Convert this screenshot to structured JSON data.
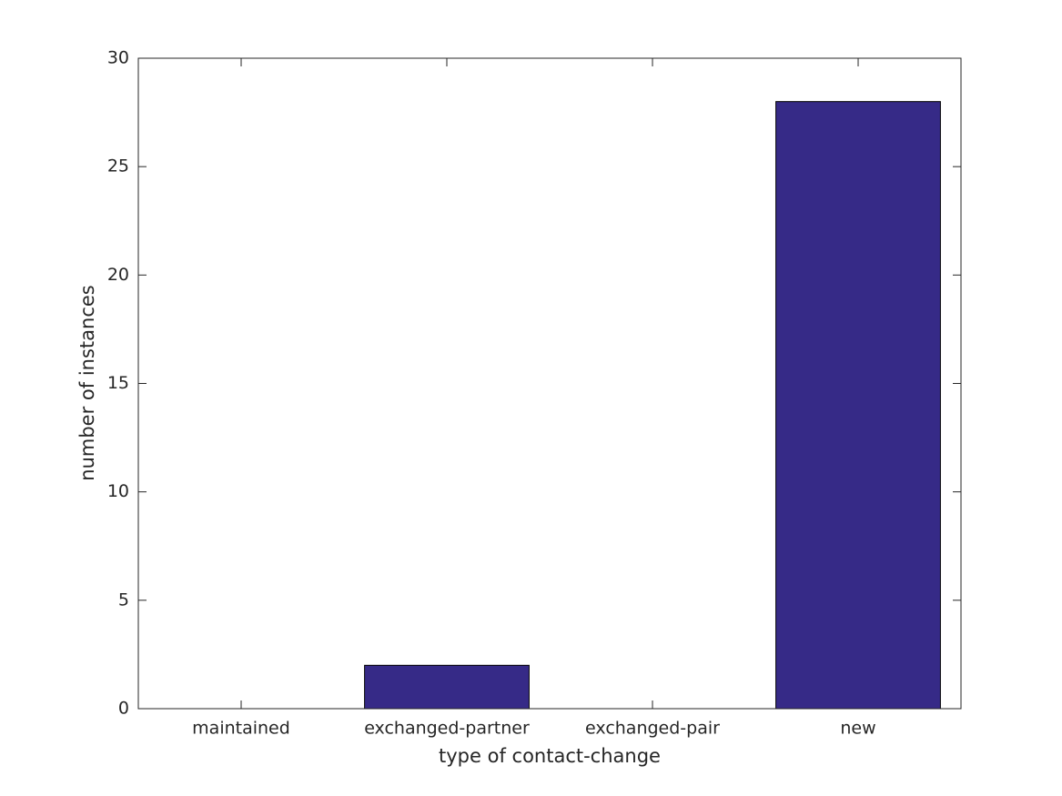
{
  "chart_data": {
    "type": "bar",
    "x_label": "type of contact-change",
    "y_label": "number of instances",
    "categories": [
      "maintained",
      "exchanged-partner",
      "exchanged-pair",
      "new"
    ],
    "values": [
      0,
      2,
      0,
      28
    ],
    "color": "#362a87",
    "ylim": [
      0,
      30
    ],
    "yticks": [
      0,
      5,
      10,
      15,
      20,
      25,
      30
    ],
    "grid": false
  }
}
